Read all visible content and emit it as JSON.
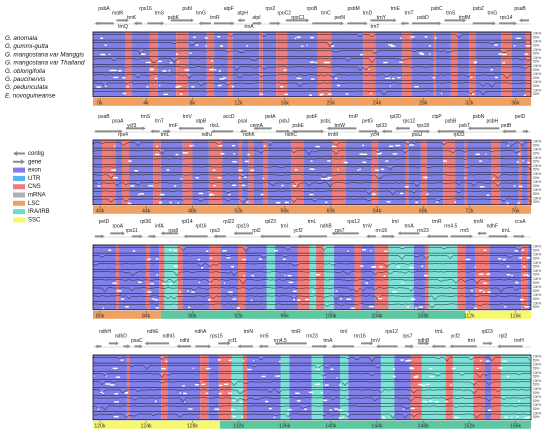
{
  "species": [
    "G. anomala",
    "G. gummi-gutta",
    "G. mangostana var Manggis",
    "G. mangostana var Thailand",
    "G. oblongifolia",
    "G. paucinervis",
    "G. pedunculata",
    "E. novoguineanse"
  ],
  "legend": [
    {
      "label": "contig",
      "color": "#8c8c8c",
      "shape": "arrow-left"
    },
    {
      "label": "gene",
      "color": "#8c8c8c",
      "shape": "arrow-right"
    },
    {
      "label": "exon",
      "color": "#8080e8",
      "shape": "box"
    },
    {
      "label": "UTR",
      "color": "#58b4f0",
      "shape": "box"
    },
    {
      "label": "CNS",
      "color": "#f07c7c",
      "shape": "box"
    },
    {
      "label": "mRNA",
      "color": "#b0b0b0",
      "shape": "box"
    },
    {
      "label": "LSC",
      "color": "#f0a060",
      "shape": "box"
    },
    {
      "label": "IRA/IRB",
      "color": "#68dcd0",
      "shape": "box"
    },
    {
      "label": "SSC",
      "color": "#f8f86c",
      "shape": "box"
    }
  ],
  "percent_labels": [
    "100%",
    "50%"
  ],
  "colors": {
    "exon": "#8080e8",
    "cns": "#f07c7c",
    "ir": "#68dcd0",
    "lsc": "#f0a060",
    "ssc": "#f8f86c",
    "gene": "#8c8c8c"
  },
  "panels": [
    {
      "ticks": [
        "0k",
        "4k",
        "8k",
        "12k",
        "16k",
        "20k",
        "24k",
        "28k",
        "32k",
        "36k"
      ],
      "regions": [
        {
          "type": "lsc",
          "from": 0,
          "to": 1
        }
      ],
      "labels_top": [
        "psbA",
        "matK",
        "trnK",
        "rps16",
        "trnS",
        "psbK",
        "psbI",
        "trnG",
        "trnR",
        "atpF",
        "atpH",
        "atpI",
        "rps2",
        "rpoC2",
        "rpoC1",
        "rpoB",
        "trnC",
        "petN",
        "psbM",
        "trnD",
        "trnY",
        "trnE",
        "trnT",
        "psbD",
        "psbC",
        "trnS",
        "trnfM",
        "psbZ",
        "trnG",
        "rps14",
        "psaB"
      ],
      "labels_mid": [
        "trnQ",
        "trnA",
        "trnT"
      ]
    },
    {
      "ticks": [
        "40k",
        "44k",
        "48k",
        "52k",
        "56k",
        "60k",
        "64k",
        "68k",
        "72k",
        "76k"
      ],
      "regions": [
        {
          "type": "lsc",
          "from": 0,
          "to": 1
        }
      ],
      "labels_top": [
        "psaB",
        "psaA",
        "ycf3",
        "trnS",
        "trnT",
        "trnF",
        "trnV",
        "atpB",
        "rbcL",
        "accD",
        "psaI",
        "cemA",
        "petA",
        "psbJ",
        "psbE",
        "psbF",
        "psbL",
        "trnW",
        "trnP",
        "petG",
        "rpl33",
        "rpl20",
        "rps12",
        "rps18",
        "clpP",
        "psbB",
        "psbT",
        "psbN",
        "psbH",
        "petB",
        "petD"
      ],
      "labels_mid": [
        "rps4",
        "trnL",
        "ndhJ",
        "ndhK",
        "ndhC",
        "trnM",
        "ycf4",
        "psaJ",
        "rpl33"
      ]
    },
    {
      "ticks": [
        "80k",
        "84k",
        "88k",
        "92k",
        "96k",
        "100k",
        "104k",
        "108k",
        "112k",
        "116k"
      ],
      "regions": [
        {
          "type": "lsc",
          "from": 0,
          "to": 0.155
        },
        {
          "type": "ir",
          "from": 0.155,
          "to": 0.85
        },
        {
          "type": "ssc",
          "from": 0.85,
          "to": 1
        }
      ],
      "labels_top": [
        "petD",
        "rpoA",
        "rps11",
        "rpl36",
        "infA",
        "rps8",
        "rpl14",
        "rpl16",
        "rps3",
        "rpl22",
        "rps19",
        "rpl2",
        "rpl23",
        "trnI",
        "ycf2",
        "trnL",
        "ndhB",
        "rps7",
        "rps12",
        "trnV",
        "rrn16",
        "trnI",
        "trnA",
        "rrn23",
        "trnR",
        "rrn4.5",
        "rrn5",
        "trnN",
        "ndhF",
        "trnL",
        "ccsA"
      ],
      "labels_mid": []
    },
    {
      "ticks": [
        "120k",
        "124k",
        "128k",
        "132k",
        "136k",
        "140k",
        "144k",
        "148k",
        "152k",
        "156k"
      ],
      "regions": [
        {
          "type": "ssc",
          "from": 0,
          "to": 0.29
        },
        {
          "type": "ir",
          "from": 0.29,
          "to": 1
        }
      ],
      "labels_top": [
        "ndhH",
        "ndhD",
        "psaC",
        "ndhE",
        "ndhG",
        "ndhI",
        "ndhA",
        "rps15",
        "ycf1",
        "trnN",
        "rrn5",
        "rrn4.5",
        "trnR",
        "rrn23",
        "trnA",
        "trnI",
        "rrn16",
        "trnV",
        "rps12",
        "rps7",
        "ndhB",
        "trnL",
        "ycf2",
        "trnI",
        "rpl23",
        "rpl2",
        "trnH"
      ],
      "labels_mid": []
    }
  ]
}
